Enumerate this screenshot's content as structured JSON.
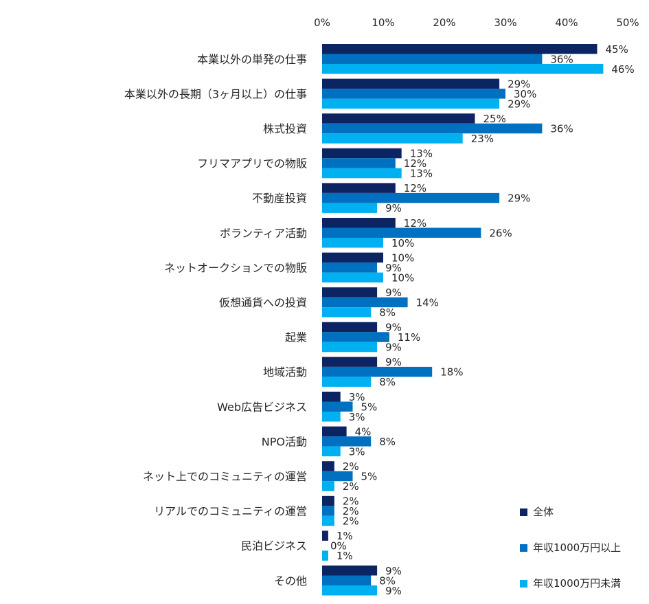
{
  "chart_data": {
    "type": "bar",
    "orientation": "horizontal",
    "title": "",
    "xlabel": "",
    "ylabel": "",
    "xlim": [
      0,
      50
    ],
    "x_ticks": [
      "0%",
      "10%",
      "20%",
      "30%",
      "40%",
      "50%"
    ],
    "x_axis_position": "top",
    "grid": false,
    "legend_position": "bottom-right",
    "categories": [
      "本業以外の単発の仕事",
      "本業以外の長期（3ヶ月以上）の仕事",
      "株式投資",
      "フリマアプリでの物販",
      "不動産投資",
      "ボランティア活動",
      "ネットオークションでの物販",
      "仮想通貨への投資",
      "起業",
      "地域活動",
      "Web広告ビジネス",
      "NPO活動",
      "ネット上でのコミュニティの運営",
      "リアルでのコミュニティの運営",
      "民泊ビジネス",
      "その他"
    ],
    "series": [
      {
        "name": "全体",
        "color": "#0c2461",
        "values": [
          45,
          29,
          25,
          13,
          12,
          12,
          10,
          9,
          9,
          9,
          3,
          4,
          2,
          2,
          1,
          9
        ],
        "value_labels": [
          "45%",
          "29%",
          "25%",
          "13%",
          "12%",
          "12%",
          "10%",
          "9%",
          "9%",
          "9%",
          "3%",
          "4%",
          "2%",
          "2%",
          "1%",
          "9%"
        ]
      },
      {
        "name": "年収1000万円以上",
        "color": "#0070c0",
        "values": [
          36,
          30,
          36,
          12,
          29,
          26,
          9,
          14,
          11,
          18,
          5,
          8,
          5,
          2,
          0,
          8
        ],
        "value_labels": [
          "36%",
          "30%",
          "36%",
          "12%",
          "29%",
          "26%",
          "9%",
          "14%",
          "11%",
          "18%",
          "5%",
          "8%",
          "5%",
          "2%",
          "0%",
          "8%"
        ]
      },
      {
        "name": "年収1000万円未満",
        "color": "#00b0f0",
        "values": [
          46,
          29,
          23,
          13,
          9,
          10,
          10,
          8,
          9,
          8,
          3,
          3,
          2,
          2,
          1,
          9
        ],
        "value_labels": [
          "46%",
          "29%",
          "23%",
          "13%",
          "9%",
          "10%",
          "10%",
          "8%",
          "9%",
          "8%",
          "3%",
          "3%",
          "2%",
          "2%",
          "1%",
          "9%"
        ]
      }
    ]
  }
}
